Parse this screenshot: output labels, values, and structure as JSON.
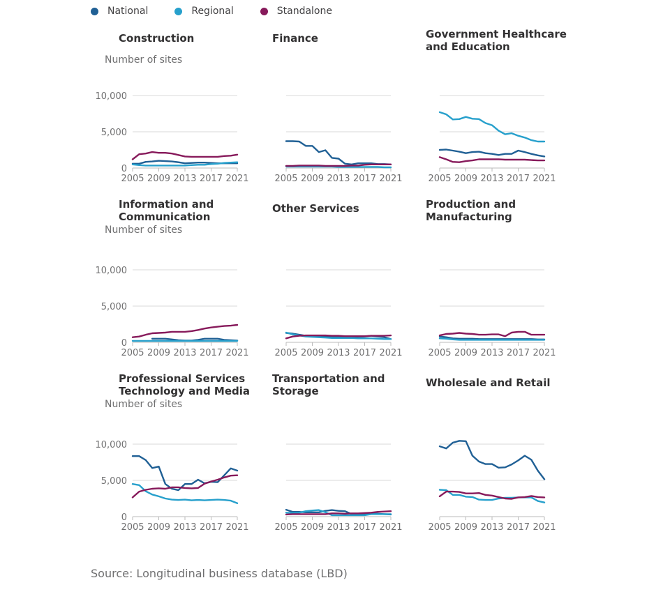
{
  "legend": [
    {
      "name": "National",
      "color": "#206095"
    },
    {
      "name": "Regional",
      "color": "#27a0cc"
    },
    {
      "name": "Standalone",
      "color": "#871a5b"
    }
  ],
  "y_axis_label": "Number of sites",
  "source": "Source: Longitudinal business database (LBD)",
  "chart_data": [
    {
      "type": "line",
      "title": "Construction",
      "x": [
        2005,
        2006,
        2007,
        2008,
        2009,
        2010,
        2011,
        2012,
        2013,
        2014,
        2015,
        2016,
        2017,
        2018,
        2019,
        2020,
        2021
      ],
      "x_ticks": [
        2005,
        2009,
        2013,
        2017,
        2021
      ],
      "y_ticks": [
        0,
        5000,
        10000
      ],
      "ylim": [
        0,
        11000
      ],
      "series": [
        {
          "name": "National",
          "values": [
            600,
            600,
            850,
            900,
            1000,
            950,
            900,
            800,
            650,
            700,
            750,
            750,
            700,
            650,
            650,
            650,
            650
          ]
        },
        {
          "name": "Regional",
          "values": [
            500,
            400,
            350,
            350,
            350,
            350,
            350,
            350,
            350,
            400,
            450,
            450,
            550,
            600,
            700,
            750,
            800
          ]
        },
        {
          "name": "Standalone",
          "values": [
            1200,
            1900,
            2000,
            2200,
            2100,
            2100,
            2000,
            1800,
            1600,
            1550,
            1550,
            1550,
            1550,
            1550,
            1650,
            1700,
            1850
          ]
        }
      ]
    },
    {
      "type": "line",
      "title": "Finance",
      "x": [
        2005,
        2006,
        2007,
        2008,
        2009,
        2010,
        2011,
        2012,
        2013,
        2014,
        2015,
        2016,
        2017,
        2018,
        2019,
        2020,
        2021
      ],
      "x_ticks": [
        2005,
        2009,
        2013,
        2017,
        2021
      ],
      "y_ticks": [
        0,
        5000,
        10000
      ],
      "ylim": [
        0,
        11000
      ],
      "series": [
        {
          "name": "National",
          "values": [
            3700,
            3700,
            3650,
            3050,
            3050,
            2200,
            2450,
            1400,
            1300,
            600,
            500,
            650,
            650,
            650,
            550,
            550,
            500
          ]
        },
        {
          "name": "Regional",
          "values": [
            200,
            200,
            200,
            200,
            200,
            200,
            200,
            200,
            150,
            150,
            150,
            150,
            150,
            150,
            150,
            100,
            100
          ]
        },
        {
          "name": "Standalone",
          "values": [
            300,
            300,
            350,
            350,
            350,
            350,
            300,
            300,
            300,
            300,
            350,
            350,
            450,
            500,
            500,
            500,
            500
          ]
        }
      ]
    },
    {
      "type": "line",
      "title": "Government Healthcare and Education",
      "x": [
        2005,
        2006,
        2007,
        2008,
        2009,
        2010,
        2011,
        2012,
        2013,
        2014,
        2015,
        2016,
        2017,
        2018,
        2019,
        2020,
        2021
      ],
      "x_ticks": [
        2005,
        2009,
        2013,
        2017,
        2021
      ],
      "y_ticks": [
        0,
        5000,
        10000
      ],
      "ylim": [
        0,
        11000
      ],
      "series": [
        {
          "name": "National",
          "values": [
            2500,
            2550,
            2400,
            2250,
            2050,
            2200,
            2250,
            2050,
            1950,
            1800,
            1950,
            1950,
            2400,
            2200,
            1950,
            1750,
            1600
          ]
        },
        {
          "name": "Regional",
          "values": [
            7700,
            7400,
            6700,
            6750,
            7050,
            6800,
            6750,
            6200,
            5900,
            5150,
            4650,
            4800,
            4450,
            4200,
            3850,
            3650,
            3650
          ]
        },
        {
          "name": "Standalone",
          "values": [
            1500,
            1200,
            850,
            800,
            950,
            1050,
            1200,
            1200,
            1200,
            1200,
            1150,
            1150,
            1150,
            1150,
            1100,
            1050,
            1050
          ]
        }
      ]
    },
    {
      "type": "line",
      "title": "Information and Communication",
      "x": [
        2005,
        2006,
        2007,
        2008,
        2009,
        2010,
        2011,
        2012,
        2013,
        2014,
        2015,
        2016,
        2017,
        2018,
        2019,
        2020,
        2021
      ],
      "x_ticks": [
        2005,
        2009,
        2013,
        2017,
        2021
      ],
      "y_ticks": [
        0,
        5000,
        10000
      ],
      "ylim": [
        0,
        11000
      ],
      "series": [
        {
          "name": "National",
          "values": [
            null,
            null,
            null,
            500,
            500,
            500,
            400,
            300,
            250,
            250,
            350,
            500,
            500,
            500,
            350,
            300,
            250
          ]
        },
        {
          "name": "Regional",
          "values": [
            200,
            200,
            200,
            200,
            200,
            200,
            200,
            200,
            200,
            200,
            200,
            200,
            200,
            200,
            200,
            200,
            200
          ]
        },
        {
          "name": "Standalone",
          "values": [
            700,
            800,
            1050,
            1250,
            1300,
            1350,
            1450,
            1450,
            1450,
            1550,
            1700,
            1900,
            2050,
            2150,
            2250,
            2300,
            2400
          ]
        }
      ]
    },
    {
      "type": "line",
      "title": "Other Services",
      "x": [
        2005,
        2006,
        2007,
        2008,
        2009,
        2010,
        2011,
        2012,
        2013,
        2014,
        2015,
        2016,
        2017,
        2018,
        2019,
        2020,
        2021
      ],
      "x_ticks": [
        2005,
        2009,
        2013,
        2017,
        2021
      ],
      "y_ticks": [
        0,
        5000,
        10000
      ],
      "ylim": [
        0,
        11000
      ],
      "series": [
        {
          "name": "National",
          "values": [
            1300,
            1200,
            1050,
            900,
            900,
            900,
            850,
            800,
            750,
            750,
            700,
            750,
            800,
            900,
            800,
            700,
            450
          ]
        },
        {
          "name": "Regional",
          "values": [
            1350,
            1100,
            950,
            800,
            750,
            700,
            650,
            600,
            600,
            600,
            600,
            550,
            550,
            550,
            500,
            450,
            450
          ]
        },
        {
          "name": "Standalone",
          "values": [
            550,
            800,
            900,
            950,
            950,
            950,
            950,
            900,
            900,
            850,
            850,
            850,
            850,
            900,
            900,
            900,
            950
          ]
        }
      ]
    },
    {
      "type": "line",
      "title": "Production and Manufacturing",
      "x": [
        2005,
        2006,
        2007,
        2008,
        2009,
        2010,
        2011,
        2012,
        2013,
        2014,
        2015,
        2016,
        2017,
        2018,
        2019,
        2020,
        2021
      ],
      "x_ticks": [
        2005,
        2009,
        2013,
        2017,
        2021
      ],
      "y_ticks": [
        0,
        5000,
        10000
      ],
      "ylim": [
        0,
        11000
      ],
      "series": [
        {
          "name": "National",
          "values": [
            800,
            700,
            550,
            500,
            500,
            500,
            450,
            450,
            450,
            450,
            450,
            450,
            450,
            450,
            450,
            400,
            400
          ]
        },
        {
          "name": "Regional",
          "values": [
            550,
            500,
            400,
            350,
            350,
            350,
            350,
            350,
            350,
            350,
            350,
            350,
            350,
            350,
            350,
            350,
            350
          ]
        },
        {
          "name": "Standalone",
          "values": [
            950,
            1150,
            1200,
            1300,
            1200,
            1150,
            1050,
            1050,
            1100,
            1100,
            850,
            1350,
            1450,
            1450,
            1050,
            1050,
            1050
          ]
        }
      ]
    },
    {
      "type": "line",
      "title": "Professional Services Technology and Media",
      "x": [
        2005,
        2006,
        2007,
        2008,
        2009,
        2010,
        2011,
        2012,
        2013,
        2014,
        2015,
        2016,
        2017,
        2018,
        2019,
        2020,
        2021
      ],
      "x_ticks": [
        2005,
        2009,
        2013,
        2017,
        2021
      ],
      "y_ticks": [
        0,
        5000,
        10000
      ],
      "ylim": [
        0,
        11000
      ],
      "series": [
        {
          "name": "National",
          "values": [
            8350,
            8350,
            7800,
            6700,
            6900,
            4500,
            3850,
            3650,
            4500,
            4500,
            5100,
            4600,
            4800,
            4750,
            5700,
            6650,
            6350
          ]
        },
        {
          "name": "Regional",
          "values": [
            4500,
            4350,
            3500,
            3050,
            2800,
            2500,
            2350,
            2300,
            2350,
            2250,
            2300,
            2250,
            2300,
            2350,
            2300,
            2200,
            1850
          ]
        },
        {
          "name": "Standalone",
          "values": [
            2650,
            3450,
            3700,
            3850,
            3900,
            3850,
            4050,
            4050,
            3950,
            3900,
            3950,
            4550,
            4850,
            5100,
            5400,
            5650,
            5700
          ]
        }
      ]
    },
    {
      "type": "line",
      "title": "Transportation and Storage",
      "x": [
        2005,
        2006,
        2007,
        2008,
        2009,
        2010,
        2011,
        2012,
        2013,
        2014,
        2015,
        2016,
        2017,
        2018,
        2019,
        2020,
        2021
      ],
      "x_ticks": [
        2005,
        2009,
        2013,
        2017,
        2021
      ],
      "y_ticks": [
        0,
        5000,
        10000
      ],
      "ylim": [
        0,
        11000
      ],
      "series": [
        {
          "name": "National",
          "values": [
            950,
            650,
            650,
            600,
            600,
            600,
            800,
            900,
            800,
            750,
            350,
            350,
            350,
            400,
            400,
            350,
            300
          ]
        },
        {
          "name": "Regional",
          "values": [
            550,
            500,
            550,
            750,
            850,
            900,
            600,
            200,
            200,
            200,
            200,
            200,
            200,
            350,
            350,
            350,
            350
          ]
        },
        {
          "name": "Standalone",
          "values": [
            300,
            350,
            350,
            350,
            350,
            350,
            350,
            450,
            450,
            400,
            450,
            450,
            500,
            550,
            650,
            700,
            750
          ]
        }
      ]
    },
    {
      "type": "line",
      "title": "Wholesale and Retail",
      "x": [
        2005,
        2006,
        2007,
        2008,
        2009,
        2010,
        2011,
        2012,
        2013,
        2014,
        2015,
        2016,
        2017,
        2018,
        2019,
        2020,
        2021
      ],
      "x_ticks": [
        2005,
        2009,
        2013,
        2017,
        2021
      ],
      "y_ticks": [
        0,
        5000,
        10000
      ],
      "ylim": [
        0,
        11000
      ],
      "series": [
        {
          "name": "National",
          "values": [
            9700,
            9400,
            10200,
            10450,
            10400,
            8400,
            7600,
            7250,
            7250,
            6750,
            6800,
            7200,
            7750,
            8400,
            7850,
            6350,
            5150
          ]
        },
        {
          "name": "Regional",
          "values": [
            3700,
            3650,
            3000,
            3000,
            2750,
            2700,
            2350,
            2300,
            2300,
            2500,
            2600,
            2600,
            2650,
            2650,
            2650,
            2150,
            1950
          ]
        },
        {
          "name": "Standalone",
          "values": [
            2800,
            3450,
            3450,
            3400,
            3200,
            3200,
            3250,
            3000,
            2900,
            2700,
            2500,
            2450,
            2650,
            2700,
            2850,
            2700,
            2650
          ]
        }
      ]
    }
  ]
}
